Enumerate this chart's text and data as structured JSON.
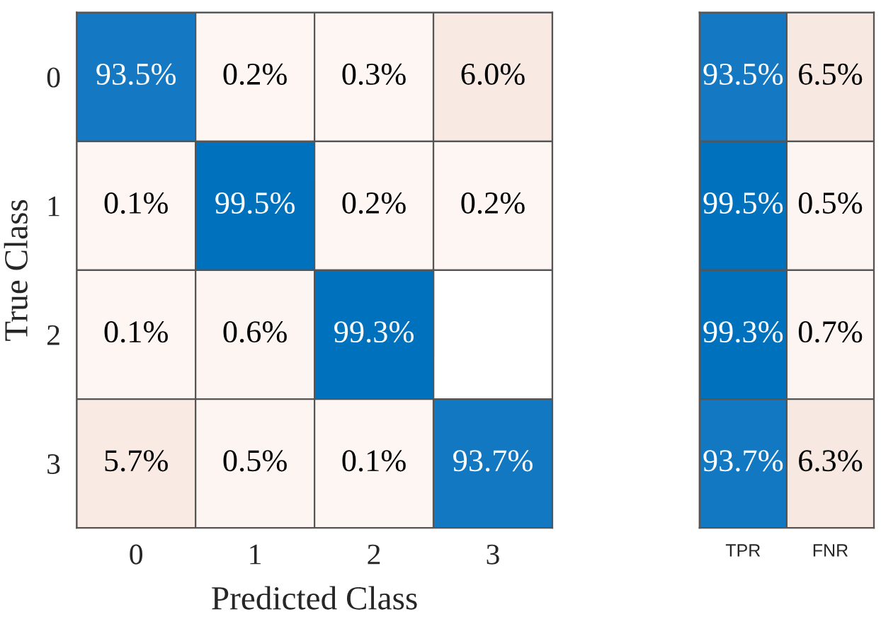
{
  "chart_data": [
    {
      "type": "heatmap",
      "xlabel": "Predicted Class",
      "ylabel": "True Class",
      "categories": [
        "0",
        "1",
        "2",
        "3"
      ],
      "y_categories": [
        "0",
        "1",
        "2",
        "3"
      ],
      "cells": [
        [
          93.5,
          0.2,
          0.3,
          6.0
        ],
        [
          0.1,
          99.5,
          0.2,
          0.2
        ],
        [
          0.1,
          0.6,
          99.3,
          null
        ],
        [
          5.7,
          0.5,
          0.1,
          93.7
        ]
      ],
      "cell_labels": [
        [
          "93.5%",
          "0.2%",
          "0.3%",
          "6.0%"
        ],
        [
          "0.1%",
          "99.5%",
          "0.2%",
          "0.2%"
        ],
        [
          "0.1%",
          "0.6%",
          "99.3%",
          null
        ],
        [
          "5.7%",
          "0.5%",
          "0.1%",
          "93.7%"
        ]
      ]
    },
    {
      "type": "heatmap",
      "categories": [
        "TPR",
        "FNR"
      ],
      "y_categories": [
        "0",
        "1",
        "2",
        "3"
      ],
      "tick_labels": "x",
      "cells": [
        [
          93.5,
          6.5
        ],
        [
          99.5,
          0.5
        ],
        [
          99.3,
          0.7
        ],
        [
          93.7,
          6.3
        ]
      ],
      "cell_labels": [
        [
          "93.5%",
          "6.5%"
        ],
        [
          "99.5%",
          "0.5%"
        ],
        [
          "99.3%",
          "0.7%"
        ],
        [
          "93.7%",
          "6.3%"
        ]
      ]
    }
  ]
}
